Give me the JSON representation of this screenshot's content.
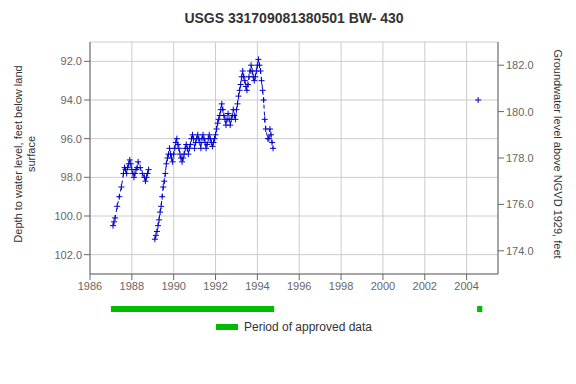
{
  "chart_data": {
    "type": "line",
    "title": "USGS 331709081380501 BW- 430",
    "y_label": "Depth to water level, feet below land\nsurface",
    "y2_label": "Groundwater level above NGVD 1929, feet",
    "xlim": [
      1986,
      2005.5
    ],
    "xticks": [
      1986,
      1988,
      1990,
      1992,
      1994,
      1996,
      1998,
      2000,
      2002,
      2004
    ],
    "ylim": [
      103.0,
      91.0
    ],
    "yticks": [
      {
        "value": 92.0,
        "label": "92.0"
      },
      {
        "value": 94.0,
        "label": "94.0"
      },
      {
        "value": 96.0,
        "label": "96.0"
      },
      {
        "value": 98.0,
        "label": "98.0"
      },
      {
        "value": 100.0,
        "label": "100.0"
      },
      {
        "value": 102.0,
        "label": "102.0"
      }
    ],
    "y2lim": [
      173.0,
      183.0
    ],
    "y2ticks": [
      {
        "value": 174.0,
        "label": "174.0"
      },
      {
        "value": 176.0,
        "label": "176.0"
      },
      {
        "value": 178.0,
        "label": "178.0"
      },
      {
        "value": 180.0,
        "label": "180.0"
      },
      {
        "value": 182.0,
        "label": "182.0"
      }
    ],
    "grid": true,
    "series": [
      {
        "color": "#0000cc",
        "line_style": "dashed",
        "marker": "plus",
        "x": [
          1987.1,
          1987.15,
          1987.2,
          1987.3,
          1987.4,
          1987.5,
          1987.6,
          1987.65,
          1987.7,
          1987.75,
          1987.8,
          1987.85,
          1987.9,
          1987.95,
          1988.0,
          1988.05,
          1988.1,
          1988.15,
          1988.2,
          1988.25,
          1988.3,
          1988.4,
          1988.5,
          1988.6,
          1988.65,
          1988.7,
          1988.75,
          1988.8
        ],
        "values": [
          100.5,
          100.3,
          100.1,
          99.5,
          99.0,
          98.5,
          97.8,
          97.5,
          97.6,
          97.8,
          97.5,
          97.3,
          97.1,
          97.3,
          97.6,
          97.8,
          98.0,
          97.8,
          97.6,
          97.5,
          97.2,
          97.5,
          97.8,
          98.0,
          98.2,
          98.0,
          97.8,
          97.6
        ]
      },
      {
        "color": "#0000cc",
        "line_style": "dashed",
        "marker": "plus",
        "x": [
          1989.1,
          1989.15,
          1989.2,
          1989.25,
          1989.3,
          1989.35,
          1989.4,
          1989.45,
          1989.5,
          1989.55,
          1989.6,
          1989.65,
          1989.7,
          1989.75,
          1989.8,
          1989.85,
          1989.9,
          1989.95,
          1990.0,
          1990.05,
          1990.1,
          1990.15,
          1990.2,
          1990.25,
          1990.3,
          1990.35,
          1990.4,
          1990.45,
          1990.5,
          1990.55,
          1990.6,
          1990.65,
          1990.7,
          1990.75,
          1990.8,
          1990.85,
          1990.9,
          1990.95,
          1991.0,
          1991.05,
          1991.1,
          1991.15,
          1991.2,
          1991.25,
          1991.3,
          1991.35,
          1991.4,
          1991.45,
          1991.5,
          1991.55,
          1991.6,
          1991.65,
          1991.7,
          1991.75,
          1991.8,
          1991.85,
          1991.9,
          1991.95,
          1992.0,
          1992.05,
          1992.1,
          1992.15,
          1992.2,
          1992.25,
          1992.3,
          1992.35,
          1992.4,
          1992.45,
          1992.5,
          1992.55,
          1992.6,
          1992.65,
          1992.7,
          1992.75,
          1992.8,
          1992.85,
          1992.9,
          1992.95,
          1993.0,
          1993.05,
          1993.1,
          1993.15,
          1993.2,
          1993.25,
          1993.3,
          1993.35,
          1993.4,
          1993.45,
          1993.5,
          1993.55,
          1993.6,
          1993.65,
          1993.7,
          1993.75,
          1993.8,
          1993.85,
          1993.9,
          1993.95,
          1994.0,
          1994.05,
          1994.1,
          1994.15,
          1994.2,
          1994.25,
          1994.3,
          1994.35,
          1994.4,
          1994.5,
          1994.55,
          1994.6,
          1994.65,
          1994.7,
          1994.75
        ],
        "values": [
          101.2,
          101.0,
          100.8,
          100.5,
          100.2,
          99.8,
          99.5,
          99.0,
          98.5,
          98.2,
          97.8,
          97.3,
          97.0,
          96.8,
          96.5,
          96.8,
          97.0,
          97.2,
          96.8,
          96.5,
          96.2,
          96.0,
          96.3,
          96.5,
          96.8,
          97.0,
          97.2,
          97.0,
          96.8,
          96.5,
          96.3,
          96.5,
          96.8,
          96.5,
          96.3,
          96.0,
          95.8,
          96.0,
          96.5,
          96.2,
          96.0,
          95.8,
          96.0,
          96.2,
          96.5,
          96.0,
          95.8,
          96.0,
          96.2,
          96.5,
          96.3,
          96.0,
          95.8,
          96.0,
          96.2,
          96.4,
          96.2,
          96.0,
          95.8,
          95.5,
          95.2,
          95.0,
          94.8,
          94.5,
          94.2,
          94.5,
          94.8,
          95.0,
          95.3,
          95.0,
          94.7,
          95.0,
          95.3,
          95.0,
          94.8,
          94.5,
          94.8,
          95.0,
          94.5,
          94.2,
          93.8,
          93.5,
          93.2,
          92.8,
          92.5,
          92.8,
          93.0,
          93.3,
          93.5,
          93.2,
          92.8,
          92.5,
          92.2,
          92.5,
          92.8,
          93.0,
          92.8,
          92.5,
          92.2,
          91.9,
          92.2,
          92.5,
          93.0,
          93.5,
          94.0,
          95.0,
          95.5,
          96.0,
          96.0,
          95.5,
          95.8,
          96.2,
          96.5
        ]
      },
      {
        "color": "#0000cc",
        "line_style": "dashed",
        "marker": "plus",
        "x": [
          2004.55
        ],
        "values": [
          94.0
        ]
      }
    ],
    "bands": [
      {
        "name": "Period of approved data",
        "color": "#00bb00",
        "ranges": [
          [
            1987.0,
            1994.8
          ],
          [
            2004.5,
            2004.75
          ]
        ]
      }
    ]
  }
}
